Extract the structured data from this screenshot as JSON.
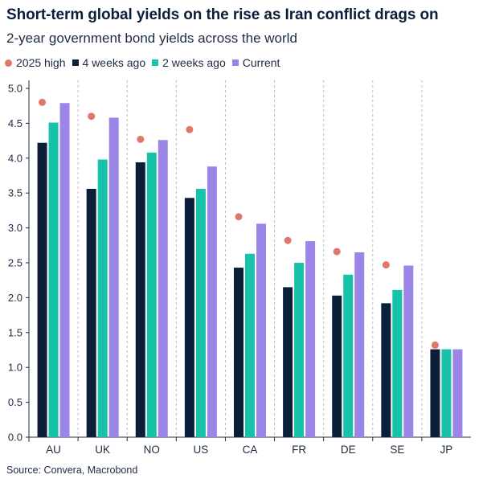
{
  "header": {
    "title": "Short-term global yields on the rise as Iran conflict drags on",
    "subtitle": "2-year government bond yields across the world"
  },
  "footer": {
    "source": "Source: Convera, Macrobond"
  },
  "colors": {
    "high": "#e0776b",
    "weeks4": "#0b1f3a",
    "weeks2": "#17c2aa",
    "current": "#9b86e8",
    "grid": "#bdbdbd",
    "axis": "#1c2b44"
  },
  "chart_data": {
    "type": "bar",
    "title": "Short-term global yields on the rise as Iran conflict drags on",
    "subtitle": "2-year government bond yields across the world",
    "xlabel": "",
    "ylabel": "",
    "ylim": [
      0,
      5.0
    ],
    "yticks": [
      "0.0",
      "0.5",
      "1.0",
      "1.5",
      "2.0",
      "2.5",
      "3.0",
      "3.5",
      "4.0",
      "4.5",
      "5.0"
    ],
    "grid": "vertical dashed",
    "legend_position": "top-left",
    "categories": [
      "AU",
      "UK",
      "NO",
      "US",
      "CA",
      "FR",
      "DE",
      "SE",
      "JP"
    ],
    "series": [
      {
        "name": "2025 high",
        "marker": "dot",
        "values": [
          4.8,
          4.6,
          4.27,
          4.41,
          3.16,
          2.82,
          2.66,
          2.47,
          1.32
        ]
      },
      {
        "name": "4 weeks ago",
        "marker": "bar",
        "values": [
          4.22,
          3.56,
          3.94,
          3.43,
          2.43,
          2.15,
          2.03,
          1.92,
          1.26
        ]
      },
      {
        "name": "2 weeks ago",
        "marker": "bar",
        "values": [
          4.51,
          3.98,
          4.08,
          3.56,
          2.63,
          2.5,
          2.33,
          2.11,
          1.26
        ]
      },
      {
        "name": "Current",
        "marker": "bar",
        "values": [
          4.79,
          4.58,
          4.26,
          3.88,
          3.06,
          2.81,
          2.65,
          2.46,
          1.26
        ]
      }
    ]
  }
}
